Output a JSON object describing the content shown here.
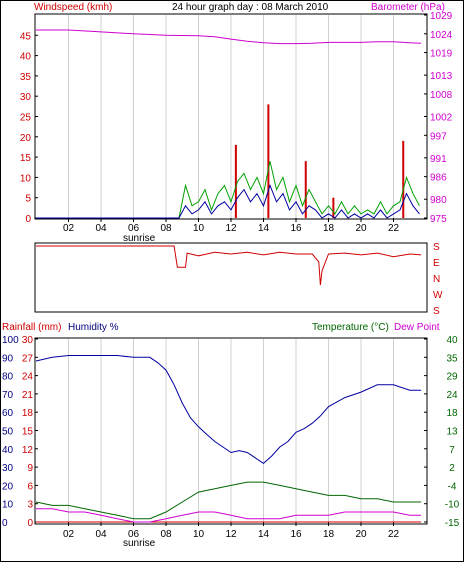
{
  "colors": {
    "wind_label": "#d00000",
    "baro_label": "#d000d0",
    "title": "#000000",
    "grid": "#d0d0d0",
    "windspeed": "#0000a0",
    "gust": "#00a000",
    "gust_peak": "#d00000",
    "barometer": "#d000d0",
    "direction": "#d00000",
    "humidity": "#0000a0",
    "temperature": "#006600",
    "dewpoint": "#d000d0",
    "rain": "#d00000",
    "temp_label": "#006600",
    "dew_label": "#d000d0",
    "hum_label": "#000080"
  },
  "chart_data": [
    {
      "type": "line",
      "title": "24 hour graph day : 08 March 2010",
      "ylabel": "Windspeed (kmh)",
      "y2label": "Barometer (hPa)",
      "xlim": [
        0,
        24
      ],
      "x_ticks": [
        2,
        4,
        6,
        8,
        10,
        12,
        14,
        16,
        18,
        20,
        22
      ],
      "x_tick_labels": [
        "02",
        "04",
        "06",
        "08",
        "10",
        "12",
        "14",
        "16",
        "18",
        "20",
        "22"
      ],
      "x_annotation": "sunrise",
      "x_annotation_at": 6,
      "ylim": [
        0,
        50
      ],
      "y_ticks": [
        0,
        5,
        10,
        15,
        20,
        25,
        30,
        35,
        40,
        45
      ],
      "y2lim": [
        975,
        1029
      ],
      "y2_ticks": [
        975,
        980,
        986,
        991,
        997,
        1002,
        1008,
        1013,
        1019,
        1024,
        1029
      ],
      "grid": true,
      "barometer_x": [
        0,
        2,
        4,
        6,
        8,
        10,
        11,
        12,
        13,
        14,
        15,
        16,
        17,
        18,
        19,
        20,
        21,
        22,
        23,
        23.7
      ],
      "barometer_y": [
        1025,
        1025,
        1024.5,
        1024,
        1023.6,
        1023.5,
        1023.2,
        1022.6,
        1022,
        1021.6,
        1021.4,
        1021.4,
        1021.5,
        1021.7,
        1021.7,
        1021.7,
        1021.9,
        1021.9,
        1021.6,
        1021.5
      ],
      "wind_x": [
        0,
        8.8,
        9.2,
        9.6,
        10,
        10.4,
        10.8,
        11.2,
        11.6,
        12,
        12.4,
        12.8,
        13.2,
        13.6,
        14,
        14.4,
        14.8,
        15.2,
        15.6,
        16,
        16.4,
        16.8,
        17.2,
        17.6,
        18,
        18.4,
        18.8,
        19.2,
        19.6,
        20,
        20.4,
        20.8,
        21.2,
        21.6,
        22,
        22.4,
        22.8,
        23.2,
        23.6
      ],
      "wind_y": [
        0,
        0,
        3,
        1,
        2,
        4,
        1,
        3,
        4,
        2,
        5,
        7,
        4,
        6,
        3,
        8,
        4,
        6,
        2,
        4,
        1,
        3,
        2,
        0,
        1,
        0,
        2,
        0,
        1,
        0,
        1,
        0,
        2,
        0,
        1,
        2,
        6,
        3,
        1
      ],
      "gust_x": [
        0,
        8.8,
        9.2,
        9.6,
        10,
        10.4,
        10.8,
        11.2,
        11.6,
        12,
        12.4,
        12.8,
        13.2,
        13.6,
        14,
        14.4,
        14.8,
        15.2,
        15.6,
        16,
        16.4,
        16.8,
        17.2,
        17.6,
        18,
        18.4,
        18.8,
        19.2,
        19.6,
        20,
        20.4,
        20.8,
        21.2,
        21.6,
        22,
        22.4,
        22.8,
        23.2,
        23.6
      ],
      "gust_y": [
        0,
        0,
        8,
        3,
        4,
        7,
        2,
        6,
        8,
        4,
        9,
        11,
        7,
        10,
        6,
        14,
        7,
        10,
        4,
        8,
        3,
        7,
        4,
        1,
        3,
        1,
        4,
        1,
        3,
        1,
        2,
        1,
        4,
        1,
        3,
        4,
        10,
        6,
        3
      ],
      "gust_peaks_x": [
        12.3,
        14.3,
        16.6,
        18.3,
        22.6
      ],
      "gust_peaks_y": [
        18,
        28,
        14,
        5,
        19
      ]
    },
    {
      "type": "line",
      "ylabels_right": [
        "S",
        "E",
        "N",
        "W",
        "S"
      ],
      "xlim": [
        0,
        24
      ],
      "direction_x": [
        0,
        2,
        4,
        6,
        8,
        8.5,
        8.7,
        9.2,
        9.3,
        10,
        11,
        12,
        13,
        14,
        15,
        16,
        17,
        17.4,
        17.5,
        17.6,
        18,
        19,
        20,
        21,
        22,
        23,
        23.7
      ],
      "direction_y": [
        180,
        180,
        180,
        180,
        180,
        180,
        300,
        300,
        220,
        235,
        215,
        225,
        215,
        230,
        215,
        225,
        225,
        270,
        40,
        320,
        225,
        220,
        230,
        220,
        240,
        225,
        230
      ]
    },
    {
      "type": "line",
      "ylabel_left": "Rainfall (mm)",
      "ylabel_left2": "Humidity %",
      "ylabel_right": "Temperature (°C)",
      "ylabel_right2": "Dew Point",
      "xlim": [
        0,
        24
      ],
      "x_ticks": [
        2,
        4,
        6,
        8,
        10,
        12,
        14,
        16,
        18,
        20,
        22
      ],
      "x_tick_labels": [
        "02",
        "04",
        "06",
        "08",
        "10",
        "12",
        "14",
        "16",
        "18",
        "20",
        "22"
      ],
      "x_annotation": "sunrise",
      "x_annotation_at": 6,
      "humidity_ticks": [
        0,
        10,
        20,
        30,
        40,
        50,
        60,
        70,
        80,
        90,
        100
      ],
      "rain_tick_labels": [
        "0",
        "3",
        "6",
        "9",
        "12",
        "15",
        "18",
        "21",
        "24",
        "27",
        "30"
      ],
      "temp_tick_labels": [
        "-15",
        "-10",
        "-4",
        "2",
        "7",
        "13",
        "18",
        "24",
        "29",
        "35",
        "40"
      ],
      "ylim": [
        0,
        100
      ],
      "temp_lim": [
        -15,
        40
      ],
      "humidity_x": [
        0,
        1,
        2,
        3,
        4,
        5,
        6,
        7,
        7.5,
        8,
        8.5,
        9,
        9.5,
        10,
        10.5,
        11,
        11.5,
        12,
        12.5,
        13,
        13.5,
        14,
        14.5,
        15,
        15.5,
        16,
        16.5,
        17,
        17.5,
        18,
        19,
        20,
        21,
        22,
        23,
        23.7
      ],
      "humidity_y": [
        88,
        90,
        91,
        91,
        91,
        91,
        90,
        90,
        87,
        83,
        75,
        65,
        57,
        52,
        48,
        44,
        41,
        38,
        39,
        38,
        35,
        32,
        36,
        41,
        44,
        49,
        51,
        54,
        58,
        63,
        68,
        71,
        75,
        75,
        72,
        72
      ],
      "temperature_x": [
        0,
        1,
        2,
        3,
        4,
        5,
        6,
        7,
        8,
        9,
        10,
        11,
        12,
        13,
        14,
        15,
        16,
        17,
        18,
        19,
        20,
        21,
        22,
        23,
        23.7
      ],
      "temperature_y": [
        -9,
        -10,
        -10,
        -11,
        -12,
        -13,
        -14,
        -14,
        -12,
        -9,
        -6,
        -5,
        -4,
        -3,
        -3,
        -4,
        -5,
        -6,
        -7,
        -7,
        -8,
        -8,
        -9,
        -9,
        -9
      ],
      "dewpoint_x": [
        0,
        1,
        2,
        3,
        4,
        5,
        6,
        7,
        8,
        9,
        10,
        11,
        12,
        13,
        14,
        15,
        16,
        17,
        18,
        19,
        20,
        21,
        22,
        23,
        23.7
      ],
      "dewpoint_y": [
        -11,
        -11,
        -12,
        -12,
        -13,
        -14,
        -15,
        -15,
        -14,
        -13,
        -12,
        -12,
        -13,
        -14,
        -14,
        -14,
        -13,
        -13,
        -13,
        -12,
        -12,
        -12,
        -12,
        -13,
        -13
      ],
      "rain_x": [
        0,
        23.7
      ],
      "rain_y": [
        0,
        0
      ]
    }
  ]
}
